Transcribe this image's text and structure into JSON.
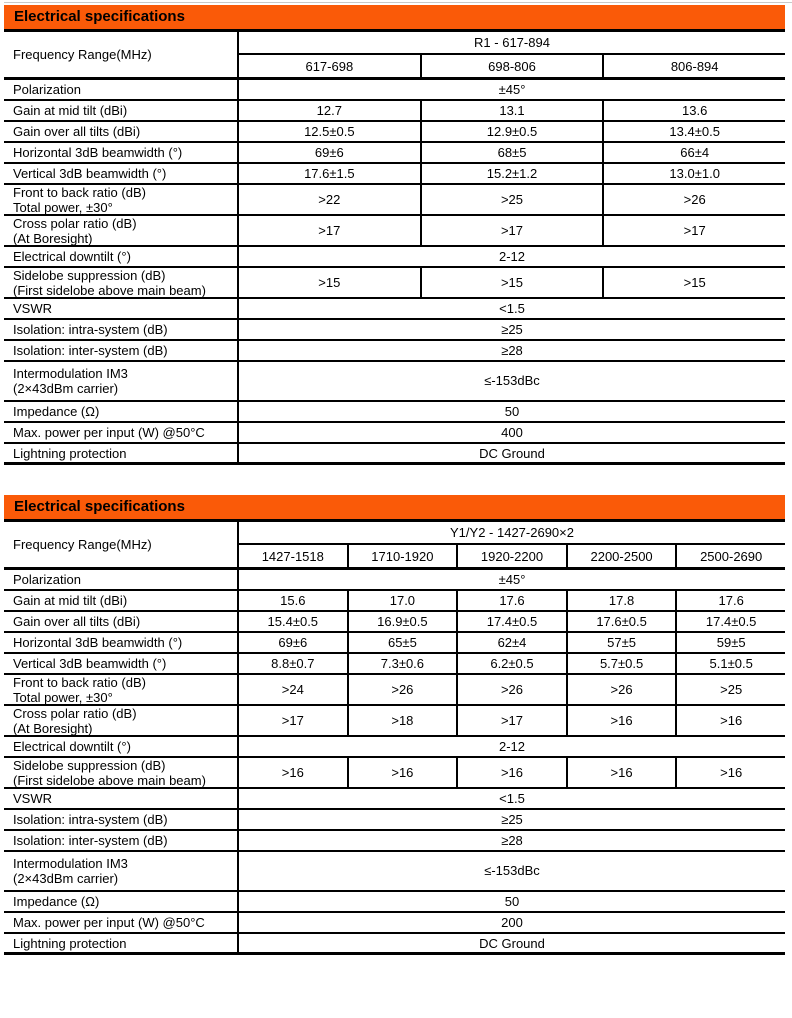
{
  "page": {
    "background": "#ffffff",
    "accent_orange": "#fa5a08",
    "border_black": "#000000"
  },
  "tables": [
    {
      "header": "Electrical specifications",
      "frequency": {
        "label": "Frequency Range(MHz)",
        "band": "R1 - 617-894",
        "sub_bands": [
          "617-698",
          "698-806",
          "806-894"
        ]
      },
      "rows": [
        {
          "label": [
            "Polarization"
          ],
          "span": "±45°"
        },
        {
          "label": [
            "Gain at mid tilt (dBi)"
          ],
          "values": [
            "12.7",
            "13.1",
            "13.6"
          ]
        },
        {
          "label": [
            "Gain over all tilts (dBi)"
          ],
          "values": [
            "12.5±0.5",
            "12.9±0.5",
            "13.4±0.5"
          ]
        },
        {
          "label": [
            "Horizontal 3dB beamwidth (°)"
          ],
          "values": [
            "69±6",
            "68±5",
            "66±4"
          ]
        },
        {
          "label": [
            "Vertical 3dB beamwidth (°)"
          ],
          "values": [
            "17.6±1.5",
            "15.2±1.2",
            "13.0±1.0"
          ]
        },
        {
          "label": [
            "Front to back ratio (dB)",
            "Total power, ±30°"
          ],
          "values": [
            ">22",
            ">25",
            ">26"
          ]
        },
        {
          "label": [
            "Cross polar ratio (dB)",
            "(At Boresight)"
          ],
          "values": [
            ">17",
            ">17",
            ">17"
          ]
        },
        {
          "label": [
            "Electrical downtilt (°)"
          ],
          "span": "2-12"
        },
        {
          "label": [
            "Sidelobe suppression (dB)",
            "(First sidelobe above main beam)"
          ],
          "values": [
            ">15",
            ">15",
            ">15"
          ]
        },
        {
          "label": [
            "VSWR"
          ],
          "span": "<1.5"
        },
        {
          "label": [
            "Isolation: intra-system (dB)"
          ],
          "span": "≥25"
        },
        {
          "label": [
            "Isolation: inter-system (dB)"
          ],
          "span": "≥28"
        },
        {
          "label": [
            "Intermodulation IM3",
            "(2×43dBm carrier)"
          ],
          "span": "≤-153dBc",
          "tall": true
        },
        {
          "label": [
            "Impedance (Ω)"
          ],
          "span": "50"
        },
        {
          "label": [
            "Max. power per input (W) @50°C"
          ],
          "span": "400"
        },
        {
          "label": [
            "Lightning protection"
          ],
          "span": "DC Ground"
        }
      ]
    },
    {
      "header": "Electrical specifications",
      "frequency": {
        "label": "Frequency Range(MHz)",
        "band": "Y1/Y2 - 1427-2690×2",
        "sub_bands": [
          "1427-1518",
          "1710-1920",
          "1920-2200",
          "2200-2500",
          "2500-2690"
        ]
      },
      "rows": [
        {
          "label": [
            "Polarization"
          ],
          "span": "±45°"
        },
        {
          "label": [
            "Gain at mid tilt (dBi)"
          ],
          "values": [
            "15.6",
            "17.0",
            "17.6",
            "17.8",
            "17.6"
          ]
        },
        {
          "label": [
            "Gain over all tilts (dBi)"
          ],
          "values": [
            "15.4±0.5",
            "16.9±0.5",
            "17.4±0.5",
            "17.6±0.5",
            "17.4±0.5"
          ]
        },
        {
          "label": [
            "Horizontal 3dB beamwidth (°)"
          ],
          "values": [
            "69±6",
            "65±5",
            "62±4",
            "57±5",
            "59±5"
          ]
        },
        {
          "label": [
            "Vertical 3dB beamwidth (°)"
          ],
          "values": [
            "8.8±0.7",
            "7.3±0.6",
            "6.2±0.5",
            "5.7±0.5",
            "5.1±0.5"
          ]
        },
        {
          "label": [
            "Front to back ratio (dB)",
            "Total power, ±30°"
          ],
          "values": [
            ">24",
            ">26",
            ">26",
            ">26",
            ">25"
          ]
        },
        {
          "label": [
            "Cross polar ratio (dB)",
            "(At Boresight)"
          ],
          "values": [
            ">17",
            ">18",
            ">17",
            ">16",
            ">16"
          ]
        },
        {
          "label": [
            "Electrical downtilt (°)"
          ],
          "span": "2-12"
        },
        {
          "label": [
            "Sidelobe suppression (dB)",
            "(First sidelobe above main beam)"
          ],
          "values": [
            ">16",
            ">16",
            ">16",
            ">16",
            ">16"
          ]
        },
        {
          "label": [
            "VSWR"
          ],
          "span": "<1.5"
        },
        {
          "label": [
            "Isolation: intra-system (dB)"
          ],
          "span": "≥25"
        },
        {
          "label": [
            "Isolation: inter-system (dB)"
          ],
          "span": "≥28"
        },
        {
          "label": [
            "Intermodulation IM3",
            "(2×43dBm carrier)"
          ],
          "span": "≤-153dBc",
          "tall": true
        },
        {
          "label": [
            "Impedance (Ω)"
          ],
          "span": "50"
        },
        {
          "label": [
            "Max. power per input (W) @50°C"
          ],
          "span": "200"
        },
        {
          "label": [
            "Lightning protection"
          ],
          "span": "DC Ground"
        }
      ]
    }
  ]
}
